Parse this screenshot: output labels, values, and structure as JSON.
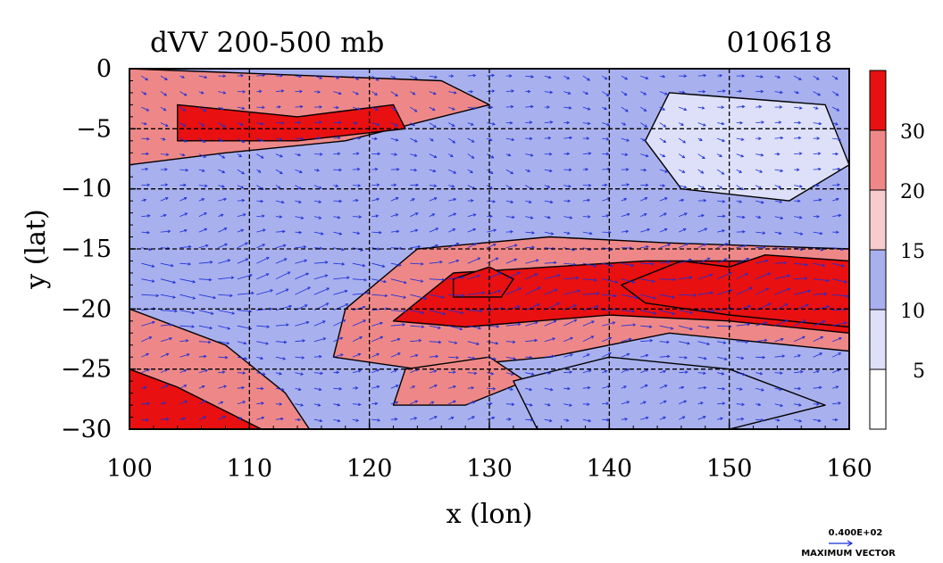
{
  "chart_data": {
    "type": "heatmap",
    "title": "dVV 200-500 mb",
    "date_label": "010618",
    "xlabel": "x (lon)",
    "ylabel": "y (lat)",
    "xlim": [
      100,
      160
    ],
    "ylim": [
      -30,
      0
    ],
    "x_ticks": [
      100,
      110,
      120,
      130,
      140,
      150,
      160
    ],
    "y_ticks": [
      0,
      -5,
      -10,
      -15,
      -20,
      -25,
      -30
    ],
    "x_tick_labels": [
      "100",
      "110",
      "120",
      "130",
      "140",
      "150",
      "160"
    ],
    "y_tick_labels": [
      "0",
      "−5",
      "−10",
      "−15",
      "−20",
      "−25",
      "−30"
    ],
    "grid": true,
    "colorbar": {
      "levels": [
        0,
        5,
        10,
        15,
        20,
        30,
        40
      ],
      "labels": [
        "5",
        "10",
        "15",
        "20",
        "30"
      ],
      "colors": [
        "#ffffff",
        "#dde0f8",
        "#a9b0ee",
        "#f8cccc",
        "#ee8888",
        "#e81010"
      ]
    },
    "field_regions": [
      {
        "name": "upper-left-band",
        "level": 20,
        "polygon": [
          [
            100,
            0
          ],
          [
            126,
            -1
          ],
          [
            130,
            -3
          ],
          [
            118,
            -6
          ],
          [
            108,
            -7
          ],
          [
            100,
            -8
          ]
        ]
      },
      {
        "name": "upper-left-core",
        "level": 30,
        "polygon": [
          [
            104,
            -3
          ],
          [
            114,
            -4
          ],
          [
            122,
            -3
          ],
          [
            123,
            -5
          ],
          [
            114,
            -6
          ],
          [
            104,
            -6
          ]
        ]
      },
      {
        "name": "main-jet-band",
        "level": 20,
        "polygon": [
          [
            124,
            -15
          ],
          [
            135,
            -14
          ],
          [
            145,
            -14.5
          ],
          [
            160,
            -15
          ],
          [
            160,
            -23.5
          ],
          [
            145,
            -22
          ],
          [
            135,
            -24
          ],
          [
            124,
            -25
          ],
          [
            117,
            -24
          ],
          [
            118,
            -20
          ]
        ]
      },
      {
        "name": "main-jet-core",
        "level": 30,
        "polygon": [
          [
            127,
            -17
          ],
          [
            143,
            -16
          ],
          [
            152,
            -16
          ],
          [
            160,
            -16.5
          ],
          [
            160,
            -22
          ],
          [
            150,
            -21
          ],
          [
            140,
            -20.5
          ],
          [
            128,
            -21.5
          ],
          [
            122,
            -21
          ]
        ]
      },
      {
        "name": "jet-max",
        "level": 40,
        "polygon": [
          [
            141,
            -18
          ],
          [
            146,
            -16
          ],
          [
            150,
            -16.5
          ],
          [
            153,
            -15.5
          ],
          [
            160,
            -16
          ],
          [
            160,
            -21.5
          ],
          [
            150,
            -20.5
          ],
          [
            143,
            -19.5
          ]
        ]
      },
      {
        "name": "jet-max-west",
        "level": 40,
        "polygon": [
          [
            127,
            -17.5
          ],
          [
            130,
            -16.5
          ],
          [
            132,
            -17.5
          ],
          [
            131,
            -19
          ],
          [
            127,
            -19
          ]
        ]
      },
      {
        "name": "lower-left-band",
        "level": 20,
        "polygon": [
          [
            100,
            -20
          ],
          [
            108,
            -23
          ],
          [
            113,
            -27
          ],
          [
            115,
            -30
          ],
          [
            100,
            -30
          ]
        ]
      },
      {
        "name": "lower-left-core",
        "level": 30,
        "polygon": [
          [
            100,
            -25
          ],
          [
            104,
            -26.5
          ],
          [
            111,
            -30
          ],
          [
            100,
            -30
          ]
        ]
      },
      {
        "name": "lower-mid-band",
        "level": 20,
        "polygon": [
          [
            123,
            -25
          ],
          [
            130,
            -24
          ],
          [
            133,
            -26
          ],
          [
            128,
            -28
          ],
          [
            122,
            -28
          ]
        ]
      },
      {
        "name": "east-quiet",
        "level": 5,
        "polygon": [
          [
            145,
            -2
          ],
          [
            158,
            -3
          ],
          [
            160,
            -8
          ],
          [
            155,
            -11
          ],
          [
            146,
            -10
          ],
          [
            143,
            -6
          ]
        ]
      },
      {
        "name": "southeast-quiet",
        "level": 10,
        "polygon": [
          [
            132,
            -26
          ],
          [
            140,
            -24
          ],
          [
            150,
            -25
          ],
          [
            158,
            -28
          ],
          [
            150,
            -30
          ],
          [
            134,
            -30
          ]
        ]
      }
    ],
    "vector_reference": {
      "value_label": "0.400E+02",
      "title": "MAXIMUM VECTOR"
    }
  }
}
